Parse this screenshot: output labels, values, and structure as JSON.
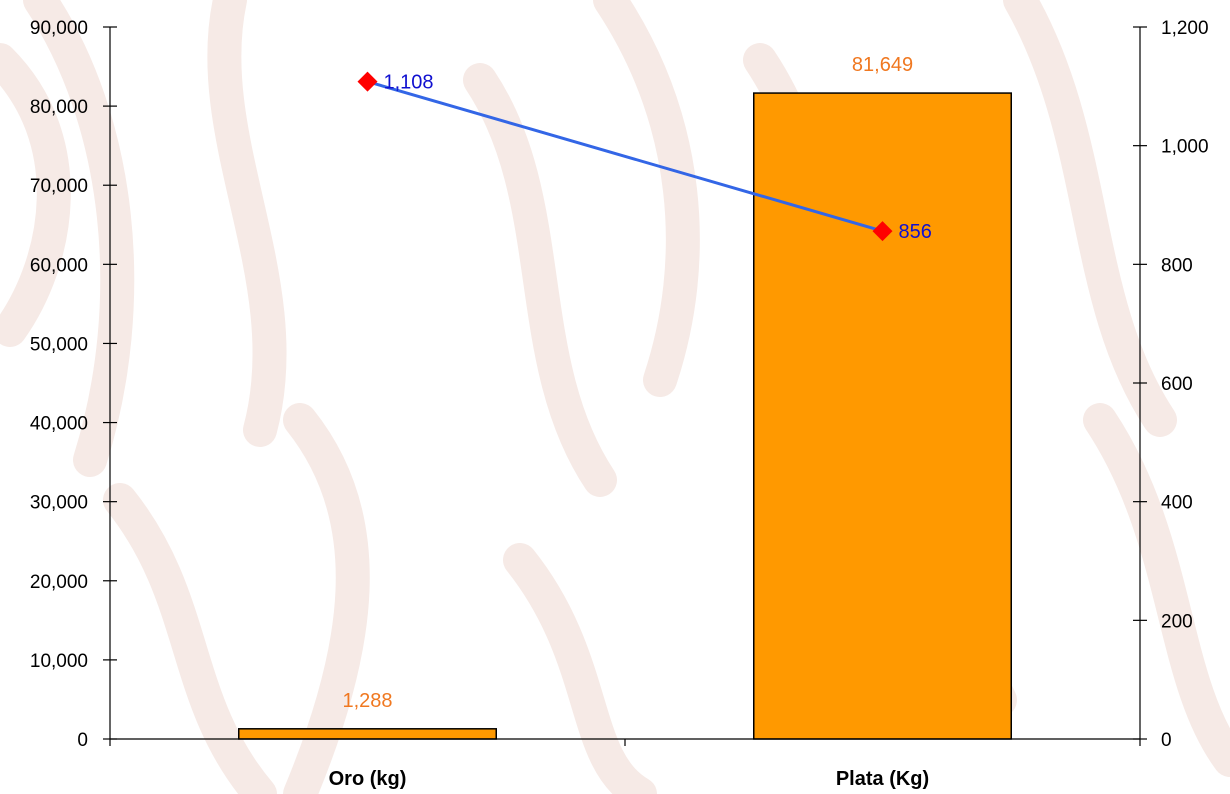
{
  "chart_data": {
    "type": "bar",
    "categories": [
      "Oro (kg)",
      "Plata (Kg)"
    ],
    "series": [
      {
        "type": "bar",
        "axis": "left",
        "values": [
          1288,
          81649
        ],
        "labels": [
          "1,288",
          "81,649"
        ]
      },
      {
        "type": "line",
        "axis": "right",
        "values": [
          1108,
          856
        ],
        "labels": [
          "1,108",
          "856"
        ]
      }
    ],
    "y_left": {
      "range": [
        0,
        90000
      ],
      "ticks": [
        0,
        10000,
        20000,
        30000,
        40000,
        50000,
        60000,
        70000,
        80000,
        90000
      ],
      "tick_labels": [
        "0",
        "10,000",
        "20,000",
        "30,000",
        "40,000",
        "50,000",
        "60,000",
        "70,000",
        "80,000",
        "90,000"
      ]
    },
    "y_right": {
      "range": [
        0,
        1200
      ],
      "ticks": [
        0,
        200,
        400,
        600,
        800,
        1000,
        1200
      ],
      "tick_labels": [
        "0",
        "200",
        "400",
        "600",
        "800",
        "1,000",
        "1,200"
      ]
    },
    "title": "",
    "xlabel": "",
    "ylabel": "",
    "grid": false,
    "legend": "none",
    "colors": {
      "bar_fill": "#FF9900",
      "bar_stroke": "#000000",
      "bar_label": "#F07820",
      "line": "#3366E6",
      "marker": "#FF0000",
      "line_label": "#1010D0",
      "watermark": "#F6EAE6"
    }
  }
}
